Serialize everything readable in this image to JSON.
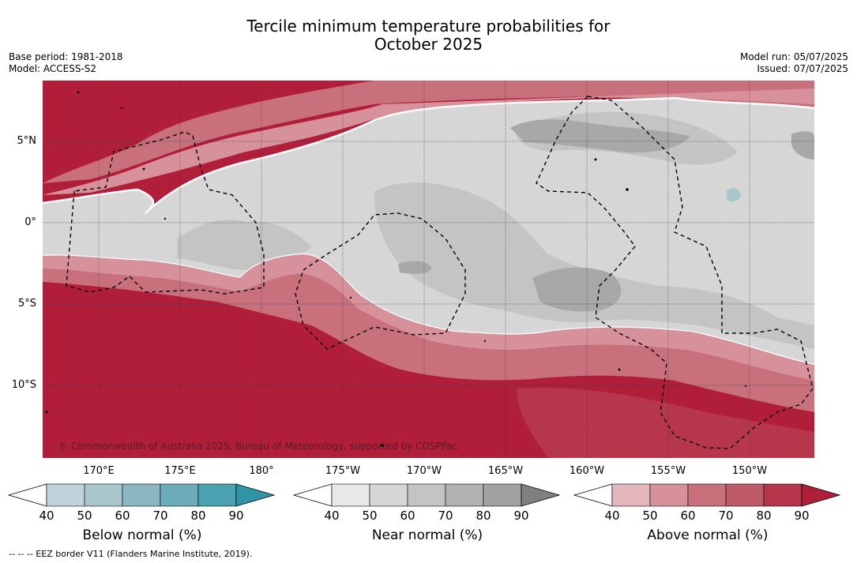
{
  "title_line1": "Tercile minimum temperature probabilities for",
  "title_line2": "October 2025",
  "meta_left": {
    "line1": "Base period: 1981-2018",
    "line2": "Model: ACCESS-S2"
  },
  "meta_right": {
    "line1": "Model run: 05/07/2025",
    "line2": "Issued: 07/07/2025"
  },
  "lat_labels": [
    "5°N",
    "0°",
    "5°S",
    "10°S"
  ],
  "lon_labels": [
    "170°E",
    "175°E",
    "180°",
    "175°W",
    "170°W",
    "165°W",
    "160°W",
    "155°W",
    "150°W"
  ],
  "credit": "© Commonwealth of Australia 2025, Bureau of Meteorology, supported by COSPPac",
  "colorbars": [
    {
      "label": "Below normal (%)",
      "ticks": [
        "40",
        "50",
        "60",
        "70",
        "80",
        "90"
      ],
      "colors": [
        "#ffffff",
        "#bfd3da",
        "#a7c7cd",
        "#8cb6c1",
        "#6badb9",
        "#4aa1b0",
        "#2e94a6"
      ]
    },
    {
      "label": "Near normal (%)",
      "ticks": [
        "40",
        "50",
        "60",
        "70",
        "80",
        "90"
      ],
      "colors": [
        "#ffffff",
        "#e8e8e8",
        "#d6d6d6",
        "#c4c4c4",
        "#b2b2b2",
        "#a2a2a2",
        "#808080"
      ]
    },
    {
      "label": "Above normal (%)",
      "ticks": [
        "40",
        "50",
        "60",
        "70",
        "80",
        "90"
      ],
      "colors": [
        "#ffffff",
        "#e2b6bc",
        "#d7919a",
        "#c8707c",
        "#bf5a69",
        "#b6374c",
        "#b11e3a"
      ]
    }
  ],
  "footnote": "--  --  -- EEZ border V11 (Flanders Marine Institute, 2019).",
  "colors": {
    "above_90": "#b11e3a",
    "above_80": "#b6374c",
    "above_70": "#c8707c",
    "above_60": "#d7919a",
    "near_50": "#d6d6d6",
    "near_60": "#c4c4c4",
    "near_70": "#a8a8a8",
    "below_60": "#a7c7cd"
  }
}
